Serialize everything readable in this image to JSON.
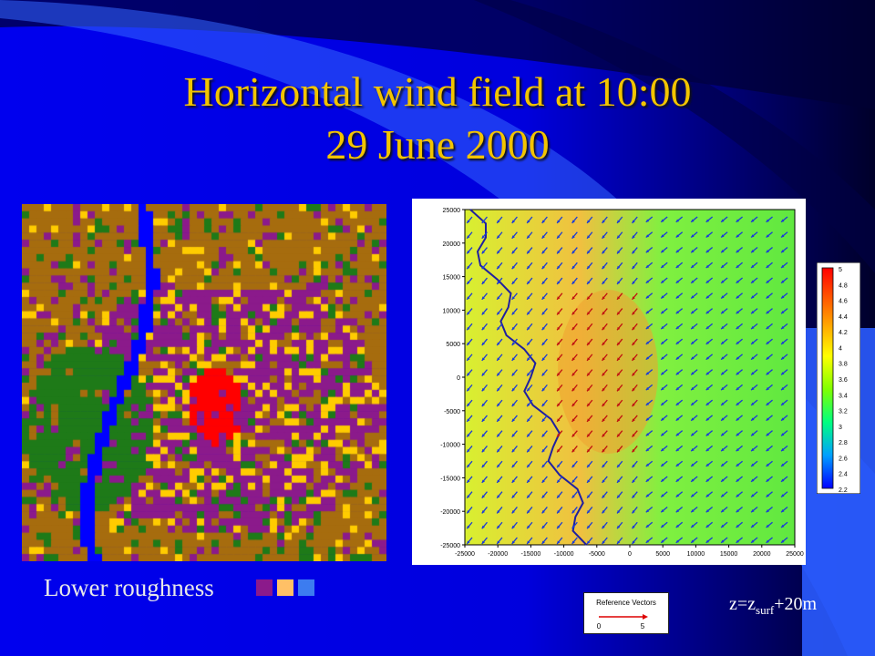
{
  "slide": {
    "title_line1": "Horizontal wind field at 10:00",
    "title_line2": "29 June 2000",
    "legend_label": "Lower roughness",
    "legend_colors": [
      "#8b1a8b",
      "#ffc066",
      "#3c7cf0"
    ],
    "height_label_prefix": "z=z",
    "height_label_sub": "surf",
    "height_label_suffix": "+20m",
    "colors": {
      "title": "#f2c400",
      "background_dark": "#000010",
      "background_blue": "#0000ee",
      "land_brown": "#a66c0e",
      "land_purple": "#8b1a8b",
      "land_yellow": "#ffcc00",
      "land_green": "#1e7a18",
      "water_blue": "#0000ff",
      "urban_red": "#ff0000"
    }
  },
  "wind_plot": {
    "y_ticks": [
      "25000",
      "20000",
      "15000",
      "10000",
      "5000",
      "0",
      "-5000",
      "-10000",
      "-15000",
      "-20000",
      "-25000"
    ],
    "x_ticks": [
      "-25000",
      "-20000",
      "-15000",
      "-10000",
      "-5000",
      "0",
      "5000",
      "10000",
      "15000",
      "20000",
      "25000"
    ]
  },
  "colorbar": {
    "labels": [
      "5",
      "4.8",
      "4.6",
      "4.4",
      "4.2",
      "4",
      "3.8",
      "3.6",
      "3.4",
      "3.2",
      "3",
      "2.8",
      "2.6",
      "2.4",
      "2.2"
    ],
    "range": [
      2.2,
      5
    ]
  },
  "reference_vectors": {
    "title": "Reference Vectors",
    "label_min": "0",
    "label_max": "5"
  }
}
